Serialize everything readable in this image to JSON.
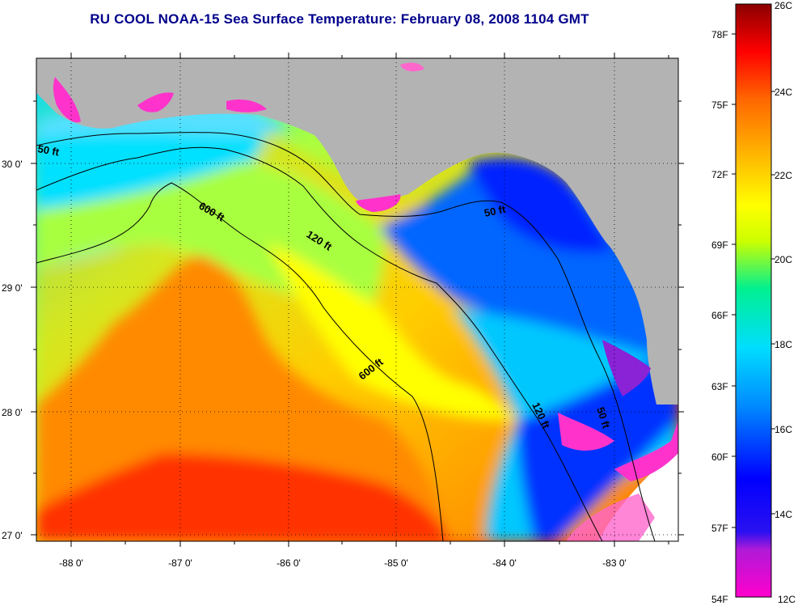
{
  "title": "RU COOL  NOAA-15  Sea Surface Temperature:  February 08, 2008 1104 GMT",
  "map": {
    "lon_ticks": [
      {
        "value": -88,
        "label": "-88 0'"
      },
      {
        "value": -87,
        "label": "-87 0'"
      },
      {
        "value": -86,
        "label": "-86 0'"
      },
      {
        "value": -85,
        "label": "-85 0'"
      },
      {
        "value": -84,
        "label": "-84 0'"
      },
      {
        "value": -83,
        "label": "-83 0'"
      }
    ],
    "lat_ticks": [
      {
        "value": 30,
        "label": "30 0'"
      },
      {
        "value": 29,
        "label": "29 0'"
      },
      {
        "value": 28,
        "label": "28 0'"
      },
      {
        "value": 27,
        "label": "27 0'"
      }
    ],
    "contour_labels": [
      "50 ft",
      "600 ft",
      "120 ft",
      "50 ft",
      "600 ft",
      "120 ft",
      "50 ft"
    ],
    "colors": {
      "land": "#b3b3b3",
      "nodata": "#ffffff"
    }
  },
  "colorbar": {
    "f_labels": [
      "78F",
      "75F",
      "72F",
      "69F",
      "66F",
      "63F",
      "60F",
      "57F",
      "54F"
    ],
    "c_labels": [
      "26C",
      "24C",
      "22C",
      "20C",
      "18C",
      "16C",
      "14C",
      "12C"
    ],
    "stops": [
      "#ff00cc",
      "#8a22d6",
      "#0000ff",
      "#0066ff",
      "#00ccff",
      "#00e5a0",
      "#ccff00",
      "#ffff00",
      "#ffbb00",
      "#ff6600",
      "#ff0000",
      "#8b0000"
    ]
  }
}
